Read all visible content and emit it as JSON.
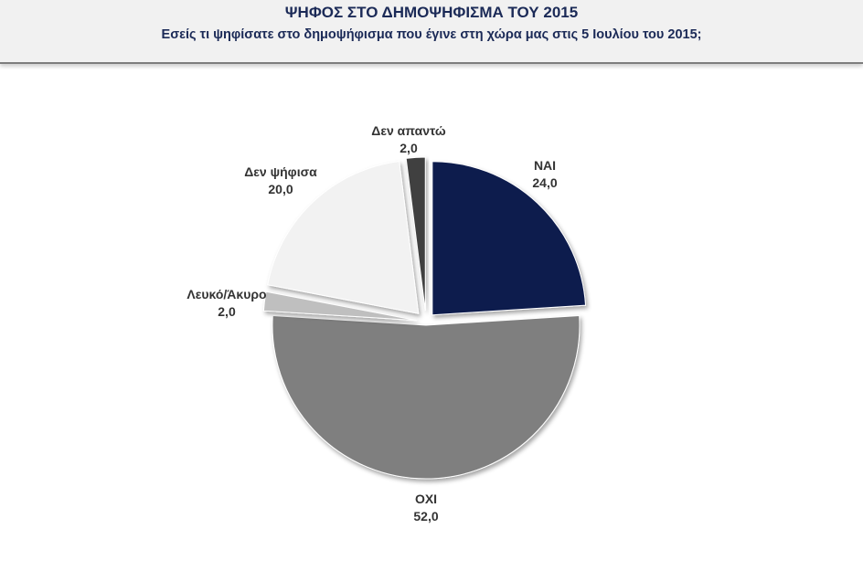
{
  "header": {
    "title": "ΨΗΦΟΣ ΣΤΟ ΔΗΜΟΨΗΦΙΣΜΑ ΤΟΥ 2015",
    "subtitle": "Εσείς τι ψηφίσατε στο δημοψήφισμα που έγινε στη χώρα μας στις 5 Ιουλίου του 2015;"
  },
  "chart_data": {
    "type": "pie",
    "title": "ΨΗΦΟΣ ΣΤΟ ΔΗΜΟΨΗΦΙΣΜΑ ΤΟΥ 2015",
    "subtitle": "Εσείς τι ψηφίσατε στο δημοψήφισμα που έγινε στη χώρα μας στις 5 Ιουλίου του 2015;",
    "slices": [
      {
        "label": "ΝΑΙ",
        "value": 24.0,
        "display": "24,0",
        "color": "#0c1a4d"
      },
      {
        "label": "ΟΧΙ",
        "value": 52.0,
        "display": "52,0",
        "color": "#7f7f7f"
      },
      {
        "label": "Λευκό/Άκυρο",
        "value": 2.0,
        "display": "2,0",
        "color": "#bfbfbf"
      },
      {
        "label": "Δεν ψήφισα",
        "value": 20.0,
        "display": "20,0",
        "color": "#f2f2f2"
      },
      {
        "label": "Δεν απαντώ",
        "value": 2.0,
        "display": "2,0",
        "color": "#404040"
      }
    ],
    "start_angle_deg": 0,
    "direction": "clockwise",
    "exploded": true
  }
}
